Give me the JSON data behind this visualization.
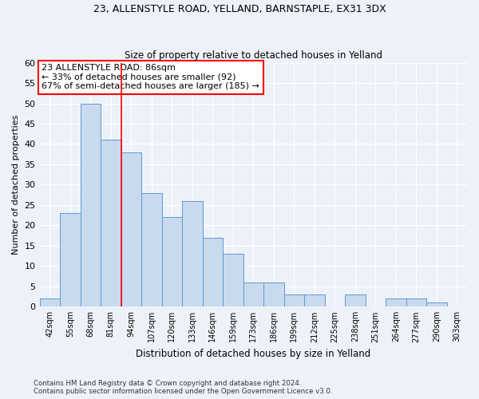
{
  "title1": "23, ALLENSTYLE ROAD, YELLAND, BARNSTAPLE, EX31 3DX",
  "title2": "Size of property relative to detached houses in Yelland",
  "xlabel": "Distribution of detached houses by size in Yelland",
  "ylabel": "Number of detached properties",
  "bin_labels": [
    "42sqm",
    "55sqm",
    "68sqm",
    "81sqm",
    "94sqm",
    "107sqm",
    "120sqm",
    "133sqm",
    "146sqm",
    "159sqm",
    "173sqm",
    "186sqm",
    "199sqm",
    "212sqm",
    "225sqm",
    "238sqm",
    "251sqm",
    "264sqm",
    "277sqm",
    "290sqm",
    "303sqm"
  ],
  "bar_values": [
    2,
    23,
    50,
    41,
    38,
    28,
    22,
    26,
    17,
    13,
    6,
    6,
    3,
    3,
    0,
    3,
    0,
    2,
    2,
    1,
    0
  ],
  "bar_color": "#c9d9ee",
  "bar_edge_color": "#5b9bd5",
  "red_line_label": "23 ALLENSTYLE ROAD: 86sqm",
  "annotation_line1": "← 33% of detached houses are smaller (92)",
  "annotation_line2": "67% of semi-detached houses are larger (185) →",
  "annotation_box_color": "white",
  "annotation_box_edge": "red",
  "ylim": [
    0,
    60
  ],
  "yticks": [
    0,
    5,
    10,
    15,
    20,
    25,
    30,
    35,
    40,
    45,
    50,
    55,
    60
  ],
  "footer1": "Contains HM Land Registry data © Crown copyright and database right 2024.",
  "footer2": "Contains public sector information licensed under the Open Government Licence v3.0.",
  "bg_color": "#edf2f9",
  "grid_color": "white"
}
